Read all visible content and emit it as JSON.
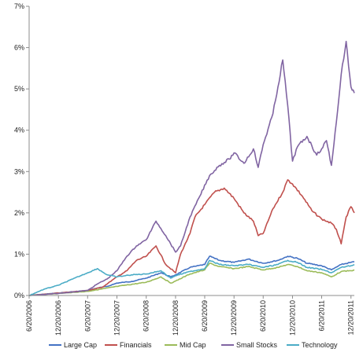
{
  "chart_data": {
    "type": "line",
    "title": "",
    "xlabel": "",
    "ylabel": "",
    "ylim": [
      0,
      0.07
    ],
    "yticks": [
      0,
      0.01,
      0.02,
      0.03,
      0.04,
      0.05,
      0.06,
      0.07
    ],
    "ytick_labels": [
      "0%",
      "1%",
      "2%",
      "3%",
      "4%",
      "5%",
      "6%",
      "7%"
    ],
    "xlim": [
      "2006-06-20",
      "2012-01-10"
    ],
    "xticks": [
      "2006-06-20",
      "2006-12-20",
      "2007-06-20",
      "2007-12-20",
      "2008-06-20",
      "2008-12-20",
      "2009-06-20",
      "2009-12-20",
      "2010-06-20",
      "2010-12-20",
      "2011-06-20",
      "2011-12-20"
    ],
    "xtick_labels": [
      "6/20/2006",
      "12/20/2006",
      "6/20/2007",
      "12/20/2007",
      "6/20/2008",
      "12/20/2008",
      "6/20/2009",
      "12/20/2009",
      "6/20/2010",
      "12/20/2010",
      "6/20/2011",
      "12/20/2011"
    ],
    "grid": false,
    "legend_position": "bottom",
    "series": [
      {
        "name": "Large Cap",
        "color": "#4472c4",
        "points": [
          [
            "2006-06-20",
            0
          ],
          [
            "2006-09-20",
            0.0003
          ],
          [
            "2006-12-20",
            0.0006
          ],
          [
            "2007-03-20",
            0.0009
          ],
          [
            "2007-06-20",
            0.0012
          ],
          [
            "2007-08-20",
            0.0018
          ],
          [
            "2007-10-20",
            0.0022
          ],
          [
            "2007-12-20",
            0.003
          ],
          [
            "2008-03-20",
            0.0034
          ],
          [
            "2008-06-20",
            0.0042
          ],
          [
            "2008-09-20",
            0.0055
          ],
          [
            "2008-11-20",
            0.0045
          ],
          [
            "2008-12-20",
            0.005
          ],
          [
            "2009-03-20",
            0.0068
          ],
          [
            "2009-06-20",
            0.0075
          ],
          [
            "2009-07-20",
            0.0095
          ],
          [
            "2009-09-20",
            0.0085
          ],
          [
            "2009-12-20",
            0.008
          ],
          [
            "2010-03-20",
            0.0088
          ],
          [
            "2010-06-20",
            0.0078
          ],
          [
            "2010-09-20",
            0.0085
          ],
          [
            "2010-11-20",
            0.0095
          ],
          [
            "2011-01-20",
            0.009
          ],
          [
            "2011-03-20",
            0.0078
          ],
          [
            "2011-06-20",
            0.0072
          ],
          [
            "2011-08-20",
            0.0062
          ],
          [
            "2011-10-20",
            0.0075
          ],
          [
            "2011-12-20",
            0.008
          ],
          [
            "2012-01-10",
            0.0082
          ]
        ]
      },
      {
        "name": "Financials",
        "color": "#c0504d",
        "points": [
          [
            "2006-06-20",
            0
          ],
          [
            "2006-09-20",
            0.0003
          ],
          [
            "2006-12-20",
            0.0006
          ],
          [
            "2007-03-20",
            0.0009
          ],
          [
            "2007-06-20",
            0.0012
          ],
          [
            "2007-09-20",
            0.002
          ],
          [
            "2007-12-20",
            0.0045
          ],
          [
            "2008-02-20",
            0.006
          ],
          [
            "2008-04-20",
            0.0085
          ],
          [
            "2008-06-20",
            0.0095
          ],
          [
            "2008-08-20",
            0.012
          ],
          [
            "2008-10-20",
            0.0075
          ],
          [
            "2008-12-20",
            0.0055
          ],
          [
            "2009-01-20",
            0.01
          ],
          [
            "2009-03-20",
            0.015
          ],
          [
            "2009-04-20",
            0.019
          ],
          [
            "2009-06-20",
            0.022
          ],
          [
            "2009-08-20",
            0.025
          ],
          [
            "2009-10-20",
            0.026
          ],
          [
            "2009-12-20",
            0.0235
          ],
          [
            "2010-02-20",
            0.02
          ],
          [
            "2010-04-20",
            0.018
          ],
          [
            "2010-05-20",
            0.0145
          ],
          [
            "2010-06-20",
            0.015
          ],
          [
            "2010-08-20",
            0.021
          ],
          [
            "2010-10-20",
            0.025
          ],
          [
            "2010-11-20",
            0.028
          ],
          [
            "2010-12-20",
            0.027
          ],
          [
            "2011-02-20",
            0.024
          ],
          [
            "2011-04-20",
            0.0205
          ],
          [
            "2011-06-20",
            0.0185
          ],
          [
            "2011-08-20",
            0.0175
          ],
          [
            "2011-09-20",
            0.016
          ],
          [
            "2011-10-20",
            0.0125
          ],
          [
            "2011-11-20",
            0.019
          ],
          [
            "2011-12-20",
            0.0215
          ],
          [
            "2012-01-10",
            0.02
          ]
        ]
      },
      {
        "name": "Mid Cap",
        "color": "#9bbb59",
        "points": [
          [
            "2006-06-20",
            0
          ],
          [
            "2006-12-20",
            0.0005
          ],
          [
            "2007-06-20",
            0.001
          ],
          [
            "2007-12-20",
            0.0022
          ],
          [
            "2008-06-20",
            0.0032
          ],
          [
            "2008-09-20",
            0.0045
          ],
          [
            "2008-11-20",
            0.003
          ],
          [
            "2008-12-20",
            0.0035
          ],
          [
            "2009-03-20",
            0.0052
          ],
          [
            "2009-06-20",
            0.0062
          ],
          [
            "2009-07-20",
            0.0078
          ],
          [
            "2009-09-20",
            0.007
          ],
          [
            "2009-12-20",
            0.0065
          ],
          [
            "2010-03-20",
            0.007
          ],
          [
            "2010-06-20",
            0.0062
          ],
          [
            "2010-09-20",
            0.0068
          ],
          [
            "2010-11-20",
            0.0075
          ],
          [
            "2011-01-20",
            0.007
          ],
          [
            "2011-03-20",
            0.006
          ],
          [
            "2011-06-20",
            0.0055
          ],
          [
            "2011-08-20",
            0.0045
          ],
          [
            "2011-10-20",
            0.0058
          ],
          [
            "2011-12-20",
            0.006
          ],
          [
            "2012-01-10",
            0.0062
          ]
        ]
      },
      {
        "name": "Small Stocks",
        "color": "#8064a2",
        "points": [
          [
            "2006-06-20",
            0
          ],
          [
            "2006-12-20",
            0.0005
          ],
          [
            "2007-06-20",
            0.0012
          ],
          [
            "2007-08-20",
            0.0028
          ],
          [
            "2007-10-20",
            0.004
          ],
          [
            "2007-12-20",
            0.006
          ],
          [
            "2008-02-20",
            0.0095
          ],
          [
            "2008-04-20",
            0.012
          ],
          [
            "2008-06-20",
            0.0135
          ],
          [
            "2008-08-20",
            0.018
          ],
          [
            "2008-10-20",
            0.0145
          ],
          [
            "2008-12-20",
            0.0105
          ],
          [
            "2009-01-20",
            0.012
          ],
          [
            "2009-03-20",
            0.019
          ],
          [
            "2009-05-20",
            0.024
          ],
          [
            "2009-07-20",
            0.029
          ],
          [
            "2009-09-20",
            0.0315
          ],
          [
            "2009-11-20",
            0.033
          ],
          [
            "2009-12-20",
            0.0345
          ],
          [
            "2010-02-20",
            0.032
          ],
          [
            "2010-04-20",
            0.0355
          ],
          [
            "2010-05-20",
            0.031
          ],
          [
            "2010-06-20",
            0.0365
          ],
          [
            "2010-08-20",
            0.044
          ],
          [
            "2010-09-20",
            0.0505
          ],
          [
            "2010-10-20",
            0.057
          ],
          [
            "2010-11-20",
            0.046
          ],
          [
            "2010-12-20",
            0.0325
          ],
          [
            "2011-01-20",
            0.036
          ],
          [
            "2011-03-20",
            0.0385
          ],
          [
            "2011-05-20",
            0.034
          ],
          [
            "2011-06-20",
            0.0355
          ],
          [
            "2011-07-20",
            0.0375
          ],
          [
            "2011-08-20",
            0.0315
          ],
          [
            "2011-09-20",
            0.042
          ],
          [
            "2011-10-20",
            0.0535
          ],
          [
            "2011-11-20",
            0.0615
          ],
          [
            "2011-12-05",
            0.0555
          ],
          [
            "2011-12-20",
            0.0505
          ],
          [
            "2012-01-10",
            0.049
          ]
        ]
      },
      {
        "name": "Technology",
        "color": "#4bacc6",
        "points": [
          [
            "2006-06-20",
            0
          ],
          [
            "2006-09-20",
            0.0015
          ],
          [
            "2006-12-20",
            0.0025
          ],
          [
            "2007-03-20",
            0.004
          ],
          [
            "2007-06-20",
            0.0055
          ],
          [
            "2007-08-20",
            0.0065
          ],
          [
            "2007-10-20",
            0.005
          ],
          [
            "2007-12-20",
            0.0045
          ],
          [
            "2008-03-20",
            0.005
          ],
          [
            "2008-06-20",
            0.0052
          ],
          [
            "2008-09-20",
            0.006
          ],
          [
            "2008-11-20",
            0.0042
          ],
          [
            "2008-12-20",
            0.0048
          ],
          [
            "2009-03-20",
            0.0058
          ],
          [
            "2009-06-20",
            0.0065
          ],
          [
            "2009-07-20",
            0.0085
          ],
          [
            "2009-09-20",
            0.0075
          ],
          [
            "2009-12-20",
            0.0072
          ],
          [
            "2010-03-20",
            0.0075
          ],
          [
            "2010-06-20",
            0.0068
          ],
          [
            "2010-09-20",
            0.0075
          ],
          [
            "2010-11-20",
            0.0085
          ],
          [
            "2011-01-20",
            0.008
          ],
          [
            "2011-03-20",
            0.0068
          ],
          [
            "2011-06-20",
            0.0063
          ],
          [
            "2011-08-20",
            0.0055
          ],
          [
            "2011-10-20",
            0.0068
          ],
          [
            "2011-12-20",
            0.0072
          ],
          [
            "2012-01-10",
            0.0075
          ]
        ]
      }
    ]
  }
}
